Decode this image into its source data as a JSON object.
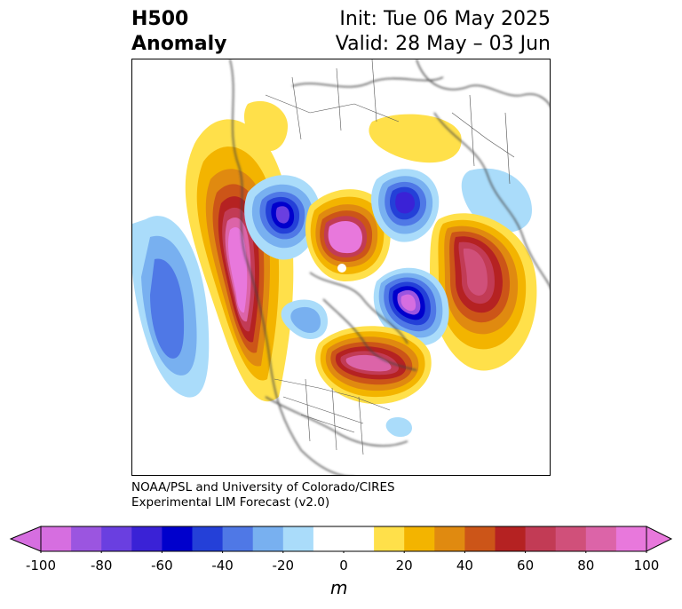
{
  "title": {
    "left_line1": "H500",
    "left_line2": "Anomaly",
    "right_line1": "Init: Tue 06 May 2025",
    "right_line2": "Valid: 28 May – 03 Jun"
  },
  "credit": {
    "line1": "NOAA/PSL and University of Colorado/CIRES",
    "line2": "Experimental LIM Forecast (v2.0)"
  },
  "colorbar": {
    "unit": "m",
    "min": -100,
    "max": 100,
    "step": 10,
    "tick_labels": [
      "-100",
      "-80",
      "-60",
      "-40",
      "-20",
      "0",
      "20",
      "40",
      "60",
      "80",
      "100"
    ],
    "colors": [
      "#d66ee0",
      "#9b55e0",
      "#6a3fe0",
      "#3a22d6",
      "#0000cc",
      "#2440d8",
      "#4f78e6",
      "#78b0f0",
      "#aadcfa",
      "#ffffff",
      "#ffffff",
      "#ffe04a",
      "#f3b400",
      "#e08a10",
      "#cc5518",
      "#b52222",
      "#c23b55",
      "#d0507a",
      "#dc64a8",
      "#e878dc"
    ],
    "extend_min_color": "#d66ee0",
    "extend_max_color": "#e878dc"
  },
  "map": {
    "projection": "north-polar-stereographic",
    "anomaly_centers": [
      {
        "region": "northeast-pacific-gulf-of-alaska",
        "sign": "positive",
        "peak_m": 100
      },
      {
        "region": "west-of-pacific-ridge",
        "sign": "negative",
        "peak_m": -50
      },
      {
        "region": "beaufort-sea-alaska-north",
        "sign": "negative",
        "peak_m": -70
      },
      {
        "region": "arctic-ocean-north-pole",
        "sign": "positive",
        "peak_m": 90
      },
      {
        "region": "siberia-central",
        "sign": "negative",
        "peak_m": -70
      },
      {
        "region": "eurasia-west",
        "sign": "positive",
        "peak_m": 80
      },
      {
        "region": "greenland-north-atlantic",
        "sign": "negative",
        "peak_m": -100
      },
      {
        "region": "hudson-bay-eastern-canada",
        "sign": "positive",
        "peak_m": 90
      },
      {
        "region": "eastern-siberia",
        "sign": "positive",
        "peak_m": 30
      },
      {
        "region": "eurasia-east",
        "sign": "negative",
        "peak_m": -15
      }
    ]
  }
}
